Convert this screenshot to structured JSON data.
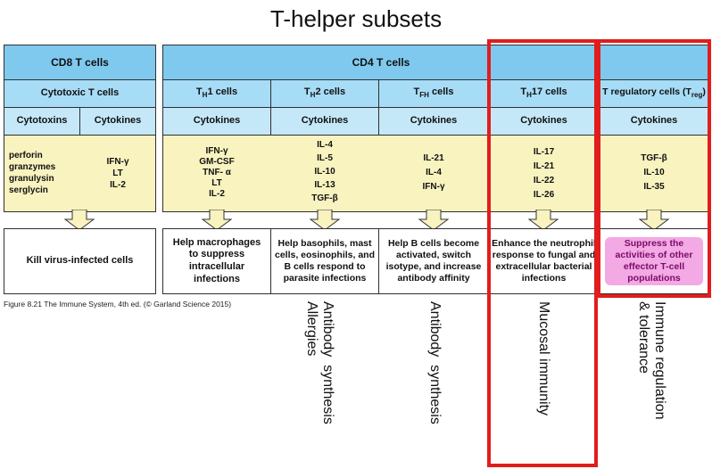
{
  "title": "T-helper subsets",
  "headers": {
    "cd8": "CD8 T cells",
    "cd4": "CD4 T cells"
  },
  "subsets": {
    "cytotoxic": "Cytotoxic T cells",
    "th1_main": "T",
    "th1_sub": "H",
    "th1_rest": "1 cells",
    "th2_main": "T",
    "th2_sub": "H",
    "th2_rest": "2 cells",
    "tfh_main": "T",
    "tfh_sub": "FH",
    "tfh_rest": " cells",
    "th17_main": "T",
    "th17_sub": "H",
    "th17_rest": "17 cells",
    "treg_main": "T regulatory cells (T",
    "treg_sub": "reg",
    "treg_rest": ")"
  },
  "categories": {
    "cytotoxins": "Cytotoxins",
    "cytokines": "Cytokines"
  },
  "molecules": {
    "cd8_cytotoxins": "perforin\ngranzymes\ngranulysin\nserglycin",
    "cd8_cytokines": "IFN-γ\nLT\nIL-2",
    "th1": "IFN-γ\nGM-CSF\nTNF- α\nLT\nIL-2",
    "th2": "IL-4\nIL-5\nIL-10\nIL-13\nTGF-β",
    "tfh": "IL-21\nIL-4\nIFN-γ",
    "th17": "IL-17\nIL-21\nIL-22\nIL-26",
    "treg": "TGF-β\nIL-10\nIL-35"
  },
  "functions": {
    "cd8": "Kill virus-infected cells",
    "th1": "Help macrophages to suppress intracellular infections",
    "th2": "Help basophils, mast cells, eosinophils, and B cells respond to parasite infections",
    "tfh": "Help B cells become activated, switch isotype, and increase antibody affinity",
    "th17": "Enhance the neutrophil response to fungal and extracellular bacterial infections",
    "treg": "Suppress the activities of other effector T-cell populations"
  },
  "caption": "Figure 8.21 The Immune System, 4th ed. (© Garland Science 2015)",
  "annotations": {
    "th2": "Antibody  synthesis\nAllergies",
    "tfh": "Antibody  synthesis",
    "th17": "Mucosal immunity",
    "treg": "Immune regulation\n& tolerance"
  },
  "colors": {
    "header_blue": "#7fc9ee",
    "subset_blue": "#a7dcf6",
    "category_blue": "#c5e8f9",
    "molecule_yellow": "#f8f3bf",
    "highlight_red": "#e11d1d",
    "highlight_pink": "#f3a9e3"
  }
}
